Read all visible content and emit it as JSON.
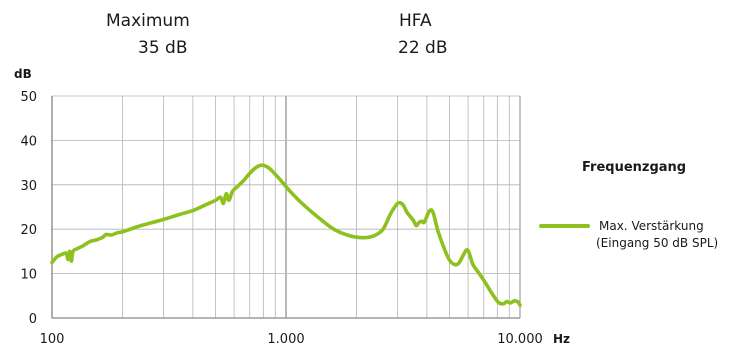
{
  "header": {
    "left": {
      "title": "Maximum",
      "value": "35 dB"
    },
    "right": {
      "title": "HFA",
      "value": "22 dB"
    }
  },
  "colors": {
    "curve": "#8ec11f",
    "grid": "#b4b4b4",
    "axis": "#888888"
  },
  "chart_data": {
    "type": "line",
    "title": "Frequenzgang",
    "ylabel": "dB",
    "xlabel": "Hz",
    "x_scale": "log",
    "xlim": [
      100,
      10000
    ],
    "ylim": [
      0,
      50
    ],
    "grid": true,
    "legend_position": "right",
    "x_ticks": [
      {
        "value": 100,
        "label": "100"
      },
      {
        "value": 1000,
        "label": "1.000"
      },
      {
        "value": 10000,
        "label": "10.000"
      }
    ],
    "y_ticks": [
      {
        "value": 0,
        "label": "0"
      },
      {
        "value": 10,
        "label": "10"
      },
      {
        "value": 20,
        "label": "20"
      },
      {
        "value": 30,
        "label": "30"
      },
      {
        "value": 40,
        "label": "40"
      },
      {
        "value": 50,
        "label": "50"
      }
    ],
    "series": [
      {
        "name": "Max. Verstärkung",
        "legend_line2": "(Eingang 50 dB SPL)",
        "color": "#8ec11f",
        "points": [
          [
            100,
            12.5
          ],
          [
            105,
            13.8
          ],
          [
            110,
            14.3
          ],
          [
            115,
            14.6
          ],
          [
            117,
            13.2
          ],
          [
            119,
            15.0
          ],
          [
            121,
            12.8
          ],
          [
            123,
            15.0
          ],
          [
            128,
            15.6
          ],
          [
            135,
            16.2
          ],
          [
            145,
            17.2
          ],
          [
            155,
            17.6
          ],
          [
            165,
            18.2
          ],
          [
            170,
            18.8
          ],
          [
            180,
            18.7
          ],
          [
            190,
            19.2
          ],
          [
            200,
            19.4
          ],
          [
            230,
            20.5
          ],
          [
            260,
            21.3
          ],
          [
            300,
            22.2
          ],
          [
            350,
            23.3
          ],
          [
            400,
            24.2
          ],
          [
            450,
            25.4
          ],
          [
            500,
            26.5
          ],
          [
            525,
            27.2
          ],
          [
            540,
            25.8
          ],
          [
            555,
            28.0
          ],
          [
            570,
            26.5
          ],
          [
            590,
            28.5
          ],
          [
            620,
            29.6
          ],
          [
            660,
            31.0
          ],
          [
            700,
            32.6
          ],
          [
            740,
            33.8
          ],
          [
            780,
            34.4
          ],
          [
            820,
            34.2
          ],
          [
            870,
            33.2
          ],
          [
            950,
            31.0
          ],
          [
            1050,
            28.3
          ],
          [
            1200,
            25.3
          ],
          [
            1400,
            22.3
          ],
          [
            1600,
            20.0
          ],
          [
            1800,
            18.8
          ],
          [
            2000,
            18.2
          ],
          [
            2200,
            18.1
          ],
          [
            2400,
            18.6
          ],
          [
            2600,
            20.0
          ],
          [
            2800,
            23.5
          ],
          [
            3000,
            25.8
          ],
          [
            3150,
            25.6
          ],
          [
            3300,
            23.7
          ],
          [
            3500,
            22.0
          ],
          [
            3600,
            20.8
          ],
          [
            3700,
            21.5
          ],
          [
            3800,
            21.8
          ],
          [
            3900,
            21.6
          ],
          [
            4100,
            24.1
          ],
          [
            4250,
            23.8
          ],
          [
            4450,
            19.8
          ],
          [
            4700,
            16.2
          ],
          [
            5000,
            13.0
          ],
          [
            5300,
            12.0
          ],
          [
            5500,
            12.5
          ],
          [
            5700,
            14.0
          ],
          [
            5900,
            15.3
          ],
          [
            6050,
            14.8
          ],
          [
            6300,
            12.0
          ],
          [
            6700,
            10.0
          ],
          [
            7100,
            8.0
          ],
          [
            7600,
            5.5
          ],
          [
            8100,
            3.5
          ],
          [
            8500,
            3.2
          ],
          [
            8800,
            3.7
          ],
          [
            9100,
            3.4
          ],
          [
            9500,
            3.9
          ],
          [
            9800,
            3.6
          ],
          [
            10000,
            2.9
          ]
        ]
      }
    ]
  }
}
